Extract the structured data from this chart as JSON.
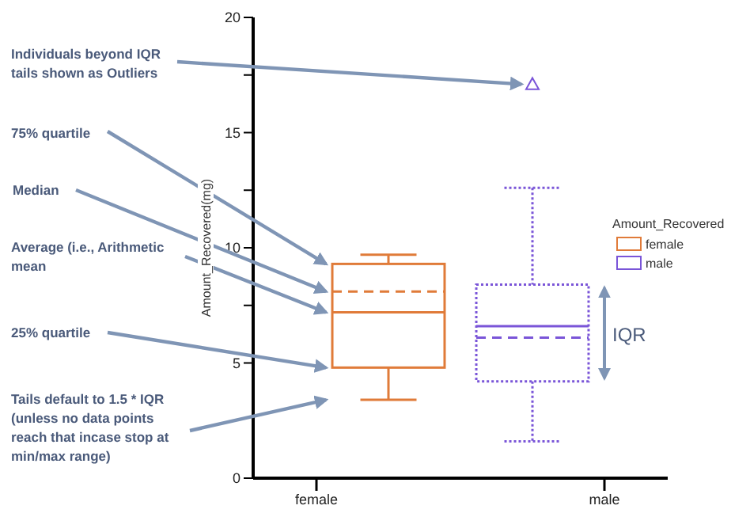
{
  "chart_data": {
    "type": "box",
    "categories": [
      "female",
      "male"
    ],
    "ylabel": "Amount_Recovered(mg)",
    "legend_title": "Amount_Recovered",
    "legend": "right",
    "marker": "triangle",
    "ylim": [
      0,
      20
    ],
    "yticks": [
      0,
      5,
      {
        "value": 7.5,
        "label": null
      },
      10,
      {
        "value": 12.5,
        "label": null
      },
      15,
      {
        "value": 17.5,
        "label": null
      },
      20
    ],
    "series": [
      {
        "name": "female",
        "color": "#e07b39",
        "line_style": "solid",
        "boxes": [
          {
            "low": 3.4,
            "q1": 4.8,
            "median": 8.1,
            "q3": 9.3,
            "high": 9.7,
            "mean": 7.2
          },
          null
        ]
      },
      {
        "name": "male",
        "color": "#7a55d8",
        "line_style": "dotted",
        "boxes": [
          null,
          {
            "low": 1.6,
            "q1": 4.2,
            "median": 6.1,
            "q3": 8.4,
            "high": 12.6,
            "mean": 6.6,
            "outliers": [
              17.1
            ]
          }
        ]
      }
    ],
    "annotations": [
      "Individuals beyond IQR tails shown as Outliers",
      "75% quartile",
      "Median",
      "Average (i.e., Arithmetic mean",
      "25% quartile",
      "Tails default to 1.5 * IQR (unless no data points reach that incase stop at min/max range)",
      "IQR"
    ]
  }
}
